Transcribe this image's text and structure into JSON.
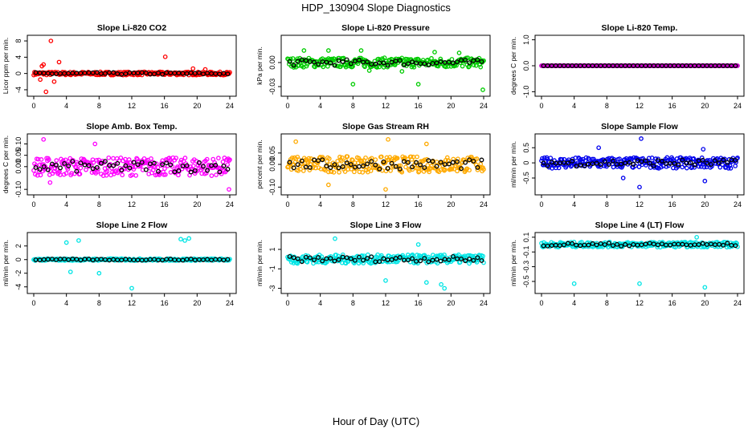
{
  "title": "HDP_130904  Slope Diagnostics",
  "global_xlabel": "Hour of Day (UTC)",
  "x_ticks": [
    0,
    4,
    8,
    12,
    16,
    20,
    24
  ],
  "x_range": [
    0,
    24
  ],
  "chart_data": [
    {
      "type": "scatter",
      "title": "Slope Li-820 CO2",
      "ylabel": "Licor ppm per min.",
      "color": "#ff0000",
      "ylim": [
        -4.8,
        8.6
      ],
      "yticks": [
        "-4",
        "0",
        "4",
        "8"
      ],
      "ytick_values": [
        -4,
        0,
        4,
        8
      ],
      "base": 0,
      "spread": 0.4,
      "outliers": [
        [
          1.2,
          2.2
        ],
        [
          0.8,
          -1.5
        ],
        [
          1.5,
          -4.5
        ],
        [
          2.1,
          8.0
        ],
        [
          3.1,
          2.8
        ],
        [
          16.1,
          4.1
        ],
        [
          1.0,
          1.8
        ],
        [
          2.5,
          -2.0
        ],
        [
          19.5,
          1.2
        ],
        [
          21.0,
          1.0
        ]
      ]
    },
    {
      "type": "scatter",
      "title": "Slope Li-820 Pressure",
      "ylabel": "kPa per min.",
      "color": "#00cc00",
      "ylim": [
        -0.038,
        0.03
      ],
      "yticks": [
        "-0.03",
        "0.00"
      ],
      "ytick_values": [
        -0.03,
        0.0
      ],
      "base": 0.0,
      "spread": 0.006,
      "outliers": [
        [
          8.0,
          -0.027
        ],
        [
          16.0,
          -0.027
        ],
        [
          23.9,
          -0.034
        ],
        [
          2.0,
          0.015
        ],
        [
          5.0,
          0.015
        ],
        [
          9.0,
          0.015
        ],
        [
          18.0,
          0.013
        ],
        [
          21.0,
          0.012
        ],
        [
          10.0,
          -0.01
        ],
        [
          14.0,
          -0.011
        ]
      ]
    },
    {
      "type": "scatter",
      "title": "Slope Li-820 Temp.",
      "ylabel": "degrees C per min.",
      "color": "#cc00cc",
      "ylim": [
        -1.05,
        1.05
      ],
      "yticks": [
        "-1.0",
        "0.0",
        "1.0"
      ],
      "ytick_values": [
        -1.0,
        0.0,
        1.0
      ],
      "base": 0.0,
      "spread": 0.0,
      "outliers": []
    },
    {
      "type": "scatter",
      "title": "Slope Amb. Box Temp.",
      "ylabel": "degrees C per min.",
      "color": "#ff00ff",
      "ylim": [
        -0.11,
        0.13
      ],
      "yticks": [
        "-0.10",
        "0.00",
        "0.05",
        "0.10"
      ],
      "ytick_values": [
        -0.1,
        0.0,
        0.05,
        0.1
      ],
      "base": 0.0,
      "spread": 0.04,
      "outliers": [
        [
          1.2,
          0.12
        ],
        [
          23.9,
          -0.1
        ],
        [
          2.0,
          -0.07
        ],
        [
          7.5,
          0.1
        ]
      ]
    },
    {
      "type": "scatter",
      "title": "Slope Gas Stream RH",
      "ylabel": "percent per min.",
      "color": "#ffaa00",
      "ylim": [
        -0.12,
        0.12
      ],
      "yticks": [
        "-0.10",
        "0.00",
        "0.05"
      ],
      "ytick_values": [
        -0.1,
        0.0,
        0.05
      ],
      "base": 0.0,
      "spread": 0.035,
      "outliers": [
        [
          1.0,
          0.1
        ],
        [
          12.0,
          -0.11
        ],
        [
          12.3,
          0.11
        ],
        [
          5.0,
          -0.09
        ],
        [
          17.0,
          0.09
        ]
      ]
    },
    {
      "type": "scatter",
      "title": "Slope Sample Flow",
      "ylabel": "ml/min per min.",
      "color": "#0000ee",
      "ylim": [
        -0.95,
        0.85
      ],
      "yticks": [
        "-0.5",
        "0",
        "0.5"
      ],
      "ytick_values": [
        -0.5,
        0.0,
        0.5
      ],
      "base": 0.0,
      "spread": 0.18,
      "outliers": [
        [
          12.0,
          -0.8
        ],
        [
          12.2,
          0.8
        ],
        [
          7.0,
          0.5
        ],
        [
          10.0,
          -0.5
        ],
        [
          20.0,
          -0.6
        ],
        [
          19.8,
          0.45
        ]
      ]
    },
    {
      "type": "scatter",
      "title": "Slope Line 2 Flow",
      "ylabel": "ml/min per min.",
      "color": "#00e5e5",
      "ylim": [
        -4.5,
        3.5
      ],
      "yticks": [
        "-4",
        "-2",
        "0",
        "2"
      ],
      "ytick_values": [
        -4,
        -2,
        0,
        2
      ],
      "base": 0.0,
      "spread": 0.15,
      "outliers": [
        [
          4.0,
          2.5
        ],
        [
          5.5,
          2.8
        ],
        [
          12.0,
          -4.2
        ],
        [
          8.0,
          -2.0
        ],
        [
          18.0,
          3.0
        ],
        [
          18.5,
          2.8
        ],
        [
          19.0,
          3.1
        ],
        [
          4.5,
          -1.8
        ]
      ]
    },
    {
      "type": "scatter",
      "title": "Slope Line 3 Flow",
      "ylabel": "ml/min per min.",
      "color": "#00e5e5",
      "ylim": [
        -3.2,
        2.4
      ],
      "yticks": [
        "-3",
        "-1",
        "1"
      ],
      "ytick_values": [
        -3,
        -1,
        1
      ],
      "base": 0.0,
      "spread": 0.45,
      "outliers": [
        [
          5.8,
          2.1
        ],
        [
          19.2,
          -3.0
        ],
        [
          18.8,
          -2.6
        ],
        [
          17.0,
          -2.4
        ],
        [
          12.0,
          -2.2
        ],
        [
          16.0,
          1.5
        ]
      ]
    },
    {
      "type": "scatter",
      "title": "Slope Line 4 (LT) Flow",
      "ylabel": "ml/min per min.",
      "color": "#00e5e5",
      "ylim": [
        -0.62,
        0.12
      ],
      "yticks": [
        "-0.5",
        "-0.3",
        "-0.1",
        "0.1"
      ],
      "ytick_values": [
        -0.5,
        -0.3,
        -0.1,
        0.1
      ],
      "base": 0.0,
      "spread": 0.035,
      "outliers": [
        [
          4.0,
          -0.53
        ],
        [
          12.0,
          -0.53
        ],
        [
          20.0,
          -0.58
        ],
        [
          19.0,
          0.1
        ]
      ]
    }
  ]
}
